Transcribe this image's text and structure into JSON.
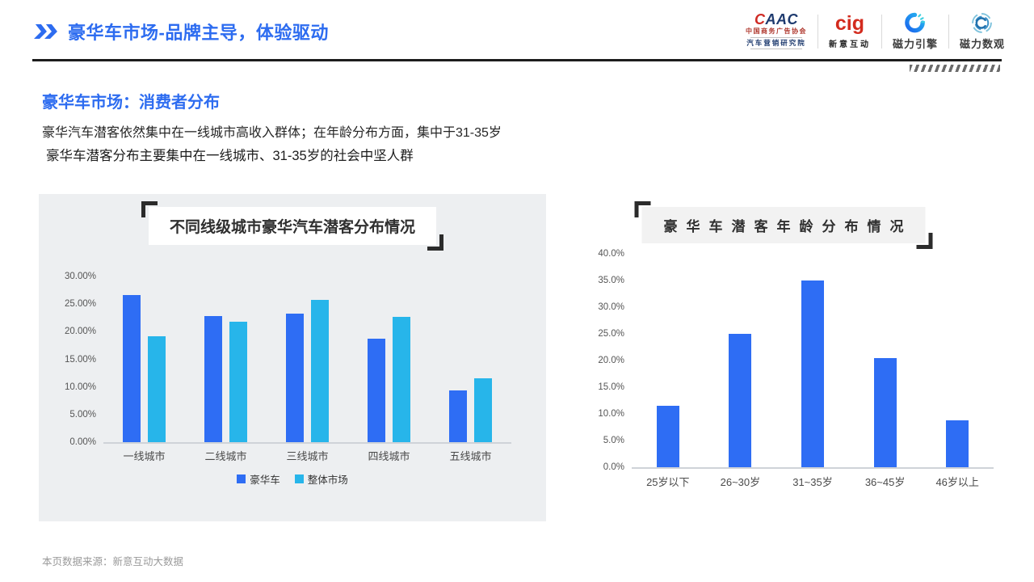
{
  "header": {
    "title": "豪华车市场-品牌主导，体验驱动"
  },
  "logos": {
    "caac": {
      "c": "C",
      "aac": "AAC",
      "line1": "中国商务广告协会",
      "line2": "汽车营销研究院"
    },
    "cig": {
      "word": "cig",
      "label": "新意互动"
    },
    "cili_yinqing": {
      "label": "磁力引擎"
    },
    "cili_shuguan": {
      "label": "磁力数观"
    }
  },
  "intro": {
    "section_title": "豪华车市场：消费者分布",
    "line1": "豪华汽车潜客依然集中在一线城市高收入群体；在年龄分布方面，集中于31-35岁",
    "line2": "豪华车潜客分布主要集中在一线城市、31-35岁的社会中坚人群"
  },
  "chart_data": [
    {
      "type": "bar",
      "title": "不同线级城市豪华汽车潜客分布情况",
      "categories": [
        "一线城市",
        "二线城市",
        "三线城市",
        "四线城市",
        "五线城市"
      ],
      "series": [
        {
          "name": "豪华车",
          "color": "#2e6df4",
          "values": [
            26.7,
            22.8,
            23.3,
            18.7,
            9.4
          ]
        },
        {
          "name": "整体市场",
          "color": "#27b5ea",
          "values": [
            19.2,
            21.8,
            25.8,
            22.7,
            11.5
          ]
        }
      ],
      "ylim": [
        0,
        30
      ],
      "ytick_step": 5,
      "yticks": [
        "0.00%",
        "5.00%",
        "10.00%",
        "15.00%",
        "20.00%",
        "25.00%",
        "30.00%"
      ],
      "grid": false,
      "legend_position": "bottom"
    },
    {
      "type": "bar",
      "title": "豪华车潜客年龄分布情况",
      "categories": [
        "25岁以下",
        "26~30岁",
        "31~35岁",
        "36~45岁",
        "46岁以上"
      ],
      "values": [
        11.5,
        25.0,
        35.0,
        20.5,
        8.8
      ],
      "color": "#2e6df4",
      "ylim": [
        0,
        40
      ],
      "ytick_step": 5,
      "yticks": [
        "0.0%",
        "5.0%",
        "10.0%",
        "15.0%",
        "20.0%",
        "25.0%",
        "30.0%",
        "35.0%",
        "40.0%"
      ],
      "grid": false,
      "legend_position": "none"
    }
  ],
  "footer": {
    "source": "本页数据来源：新意互动大数据"
  },
  "colors": {
    "accent_blue": "#2d6cf0",
    "bar_blue": "#2e6df4",
    "bar_cyan": "#27b5ea",
    "panel_bg": "#edeff1"
  }
}
